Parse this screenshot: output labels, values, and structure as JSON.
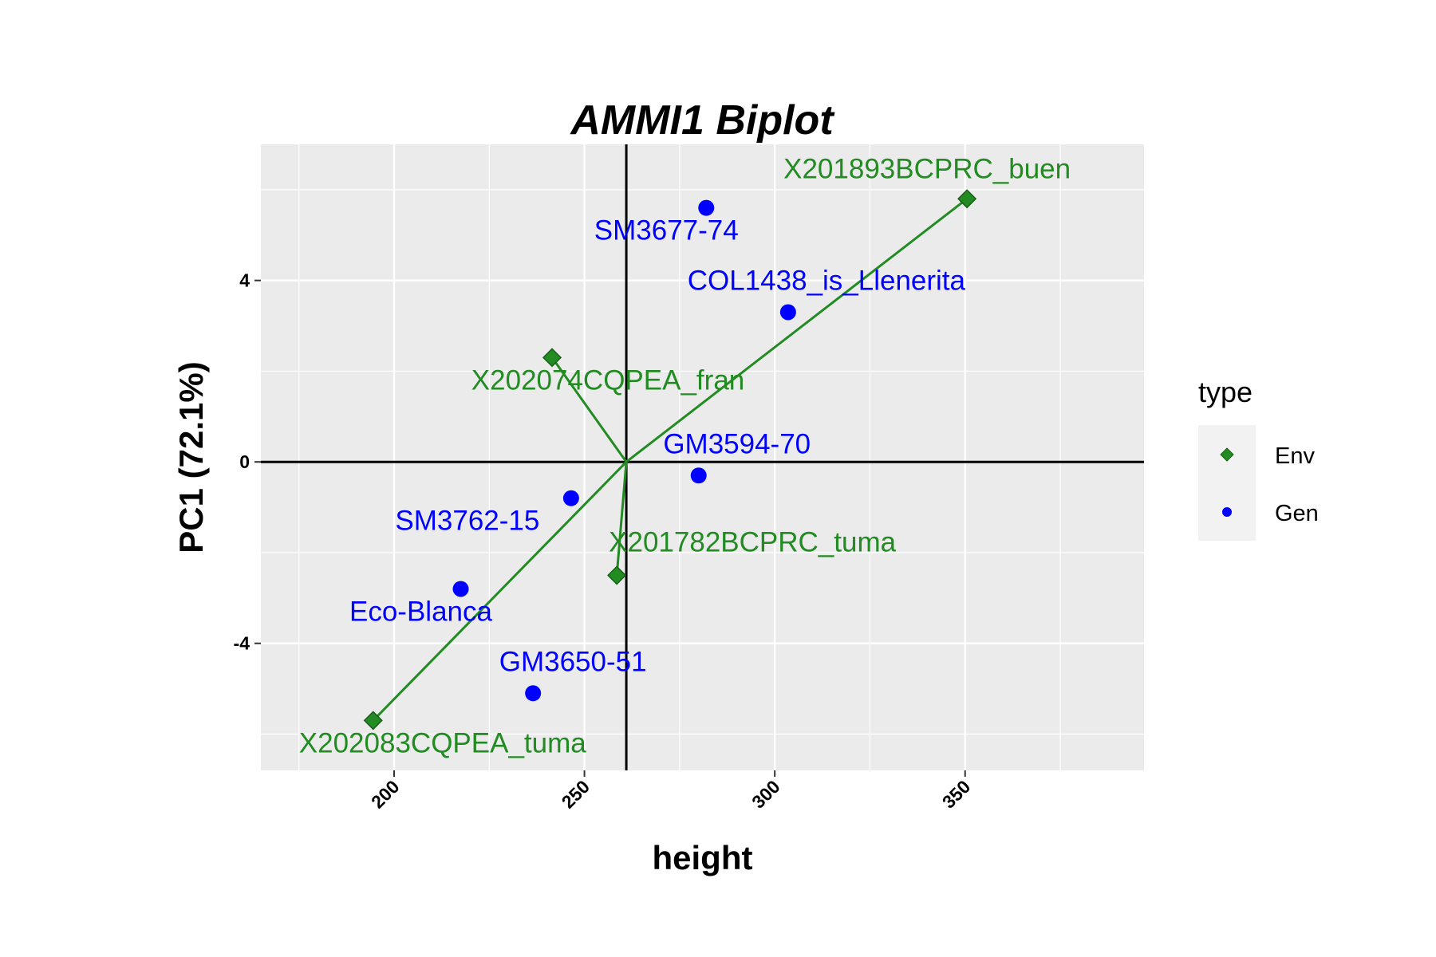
{
  "chart_data": {
    "type": "scatter",
    "title": "AMMI1 Biplot",
    "xlabel": "height",
    "ylabel": "PC1 (72.1%)",
    "xlim": [
      165,
      397
    ],
    "ylim": [
      -6.8,
      7.0
    ],
    "xticks": [
      200,
      250,
      300,
      350
    ],
    "yticks": [
      -4,
      0,
      4
    ],
    "x_tick_labels": [
      "200",
      "250",
      "300",
      "350"
    ],
    "y_tick_labels": [
      "-4",
      "0",
      "4"
    ],
    "grid": true,
    "reference_lines": {
      "x": 261,
      "y": 0
    },
    "legend": {
      "title": "type",
      "position": "right",
      "entries": [
        {
          "label": "Env",
          "shape": "diamond",
          "color": "#228B22"
        },
        {
          "label": "Gen",
          "shape": "circle",
          "color": "#0000FF"
        }
      ]
    },
    "series": [
      {
        "name": "Env",
        "color": "#228B22",
        "marker": "diamond",
        "points": [
          {
            "label": "X201893BCPRC_buen",
            "x": 350.5,
            "y": 5.8
          },
          {
            "label": "X202074CQPEA_fran",
            "x": 241.5,
            "y": 2.3
          },
          {
            "label": "X201782BCPRC_tuma",
            "x": 258.5,
            "y": -2.5
          },
          {
            "label": "X202083CQPEA_tuma",
            "x": 194.5,
            "y": -5.7
          }
        ]
      },
      {
        "name": "Gen",
        "color": "#0000FF",
        "marker": "circle",
        "points": [
          {
            "label": "SM3677-74",
            "x": 282.0,
            "y": 5.6
          },
          {
            "label": "COL1438_is_Llenerita",
            "x": 303.5,
            "y": 3.3
          },
          {
            "label": "GM3594-70",
            "x": 280.0,
            "y": -0.3
          },
          {
            "label": "SM3762-15",
            "x": 246.5,
            "y": -0.8
          },
          {
            "label": "Eco-Blanca",
            "x": 217.5,
            "y": -2.8
          },
          {
            "label": "GM3650-51",
            "x": 236.5,
            "y": -5.1
          }
        ]
      }
    ]
  }
}
